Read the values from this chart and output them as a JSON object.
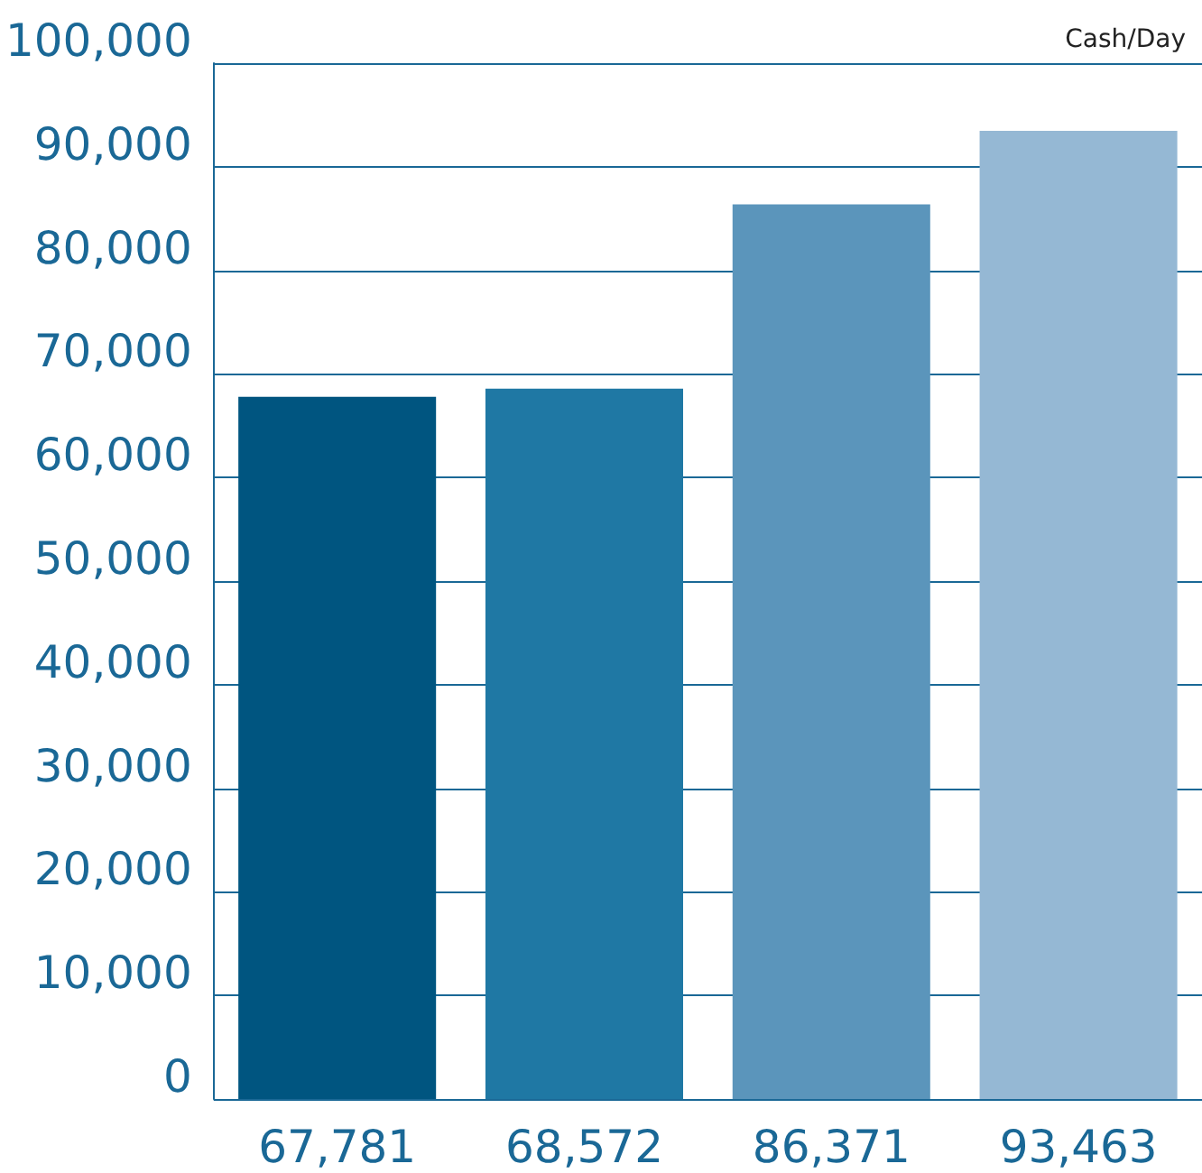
{
  "chart_data": {
    "type": "bar",
    "ylabel": "Cash/Day",
    "categories": [
      null,
      null,
      null,
      null
    ],
    "values": [
      67781,
      68572,
      86371,
      93463
    ],
    "value_labels": [
      "67,781",
      "68,572",
      "86,371",
      "93,463"
    ],
    "colors": [
      "#005580",
      "#1f78a4",
      "#5b95bb",
      "#95b8d4"
    ],
    "ylim": [
      0,
      100000
    ],
    "yticks": [
      {
        "value": 0,
        "label": "0"
      },
      {
        "value": 10000,
        "label": "10,000"
      },
      {
        "value": 20000,
        "label": "20,000"
      },
      {
        "value": 30000,
        "label": "30,000"
      },
      {
        "value": 40000,
        "label": "40,000"
      },
      {
        "value": 50000,
        "label": "50,000"
      },
      {
        "value": 60000,
        "label": "60,000"
      },
      {
        "value": 70000,
        "label": "70,000"
      },
      {
        "value": 80000,
        "label": "80,000"
      },
      {
        "value": 90000,
        "label": "90,000"
      },
      {
        "value": 100000,
        "label": "100,000"
      }
    ],
    "grid": "y"
  }
}
